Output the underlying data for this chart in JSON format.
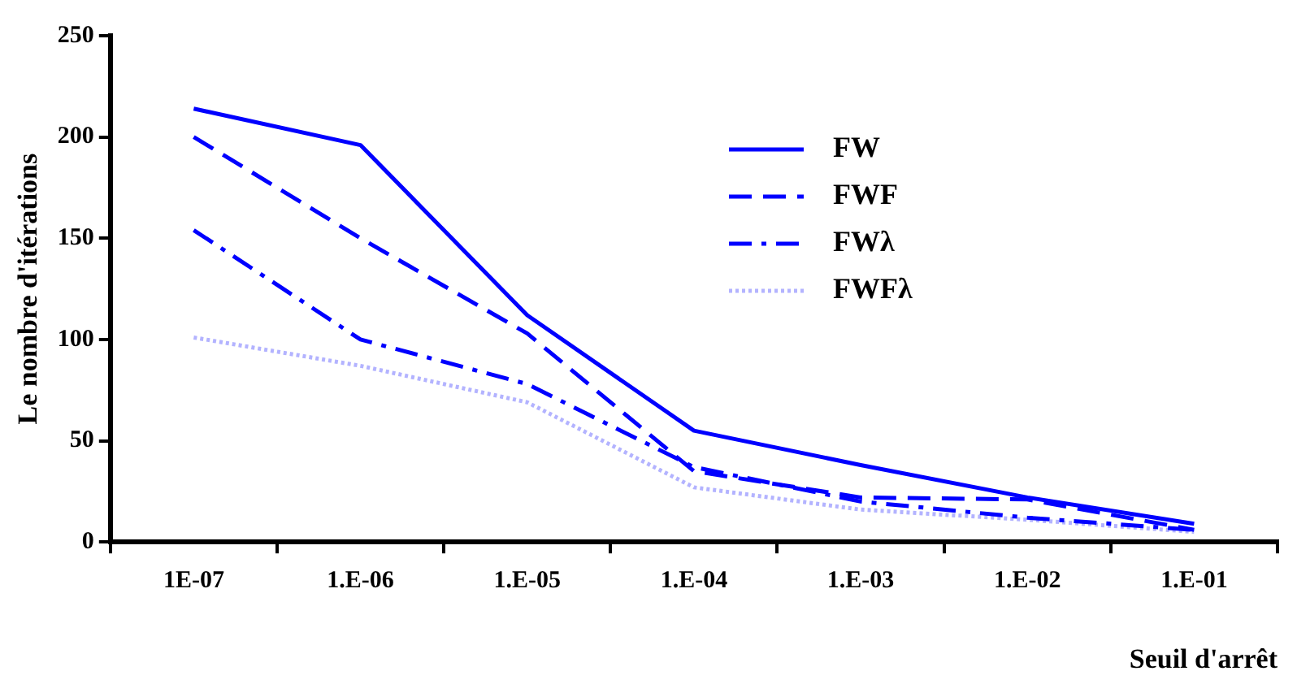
{
  "chart_data": {
    "type": "line",
    "xlabel": "Seuil d'arrêt",
    "ylabel": "Le nombre d'itérations",
    "categories": [
      "1E-07",
      "1.E-06",
      "1.E-05",
      "1.E-04",
      "1.E-03",
      "1.E-02",
      "1.E-01"
    ],
    "series": [
      {
        "name": "FW",
        "color": "#0000ff",
        "line_style": "solid",
        "values": [
          214,
          196,
          112,
          55,
          38,
          22,
          9
        ]
      },
      {
        "name": "FWF",
        "color": "#0000ff",
        "line_style": "dashed",
        "values": [
          200,
          150,
          103,
          35,
          22,
          21,
          6
        ]
      },
      {
        "name": "FWλ",
        "color": "#0000ff",
        "line_style": "dashdot",
        "values": [
          154,
          100,
          78,
          37,
          20,
          12,
          6
        ]
      },
      {
        "name": "FWFλ",
        "color": "#b3b3ff",
        "line_style": "dotted",
        "values": [
          101,
          87,
          69,
          27,
          16,
          11,
          5
        ]
      }
    ],
    "ylim": [
      0,
      250
    ],
    "yticks": [
      0,
      50,
      100,
      150,
      200,
      250
    ],
    "grid": false,
    "legend": "top right",
    "marker": "none"
  }
}
